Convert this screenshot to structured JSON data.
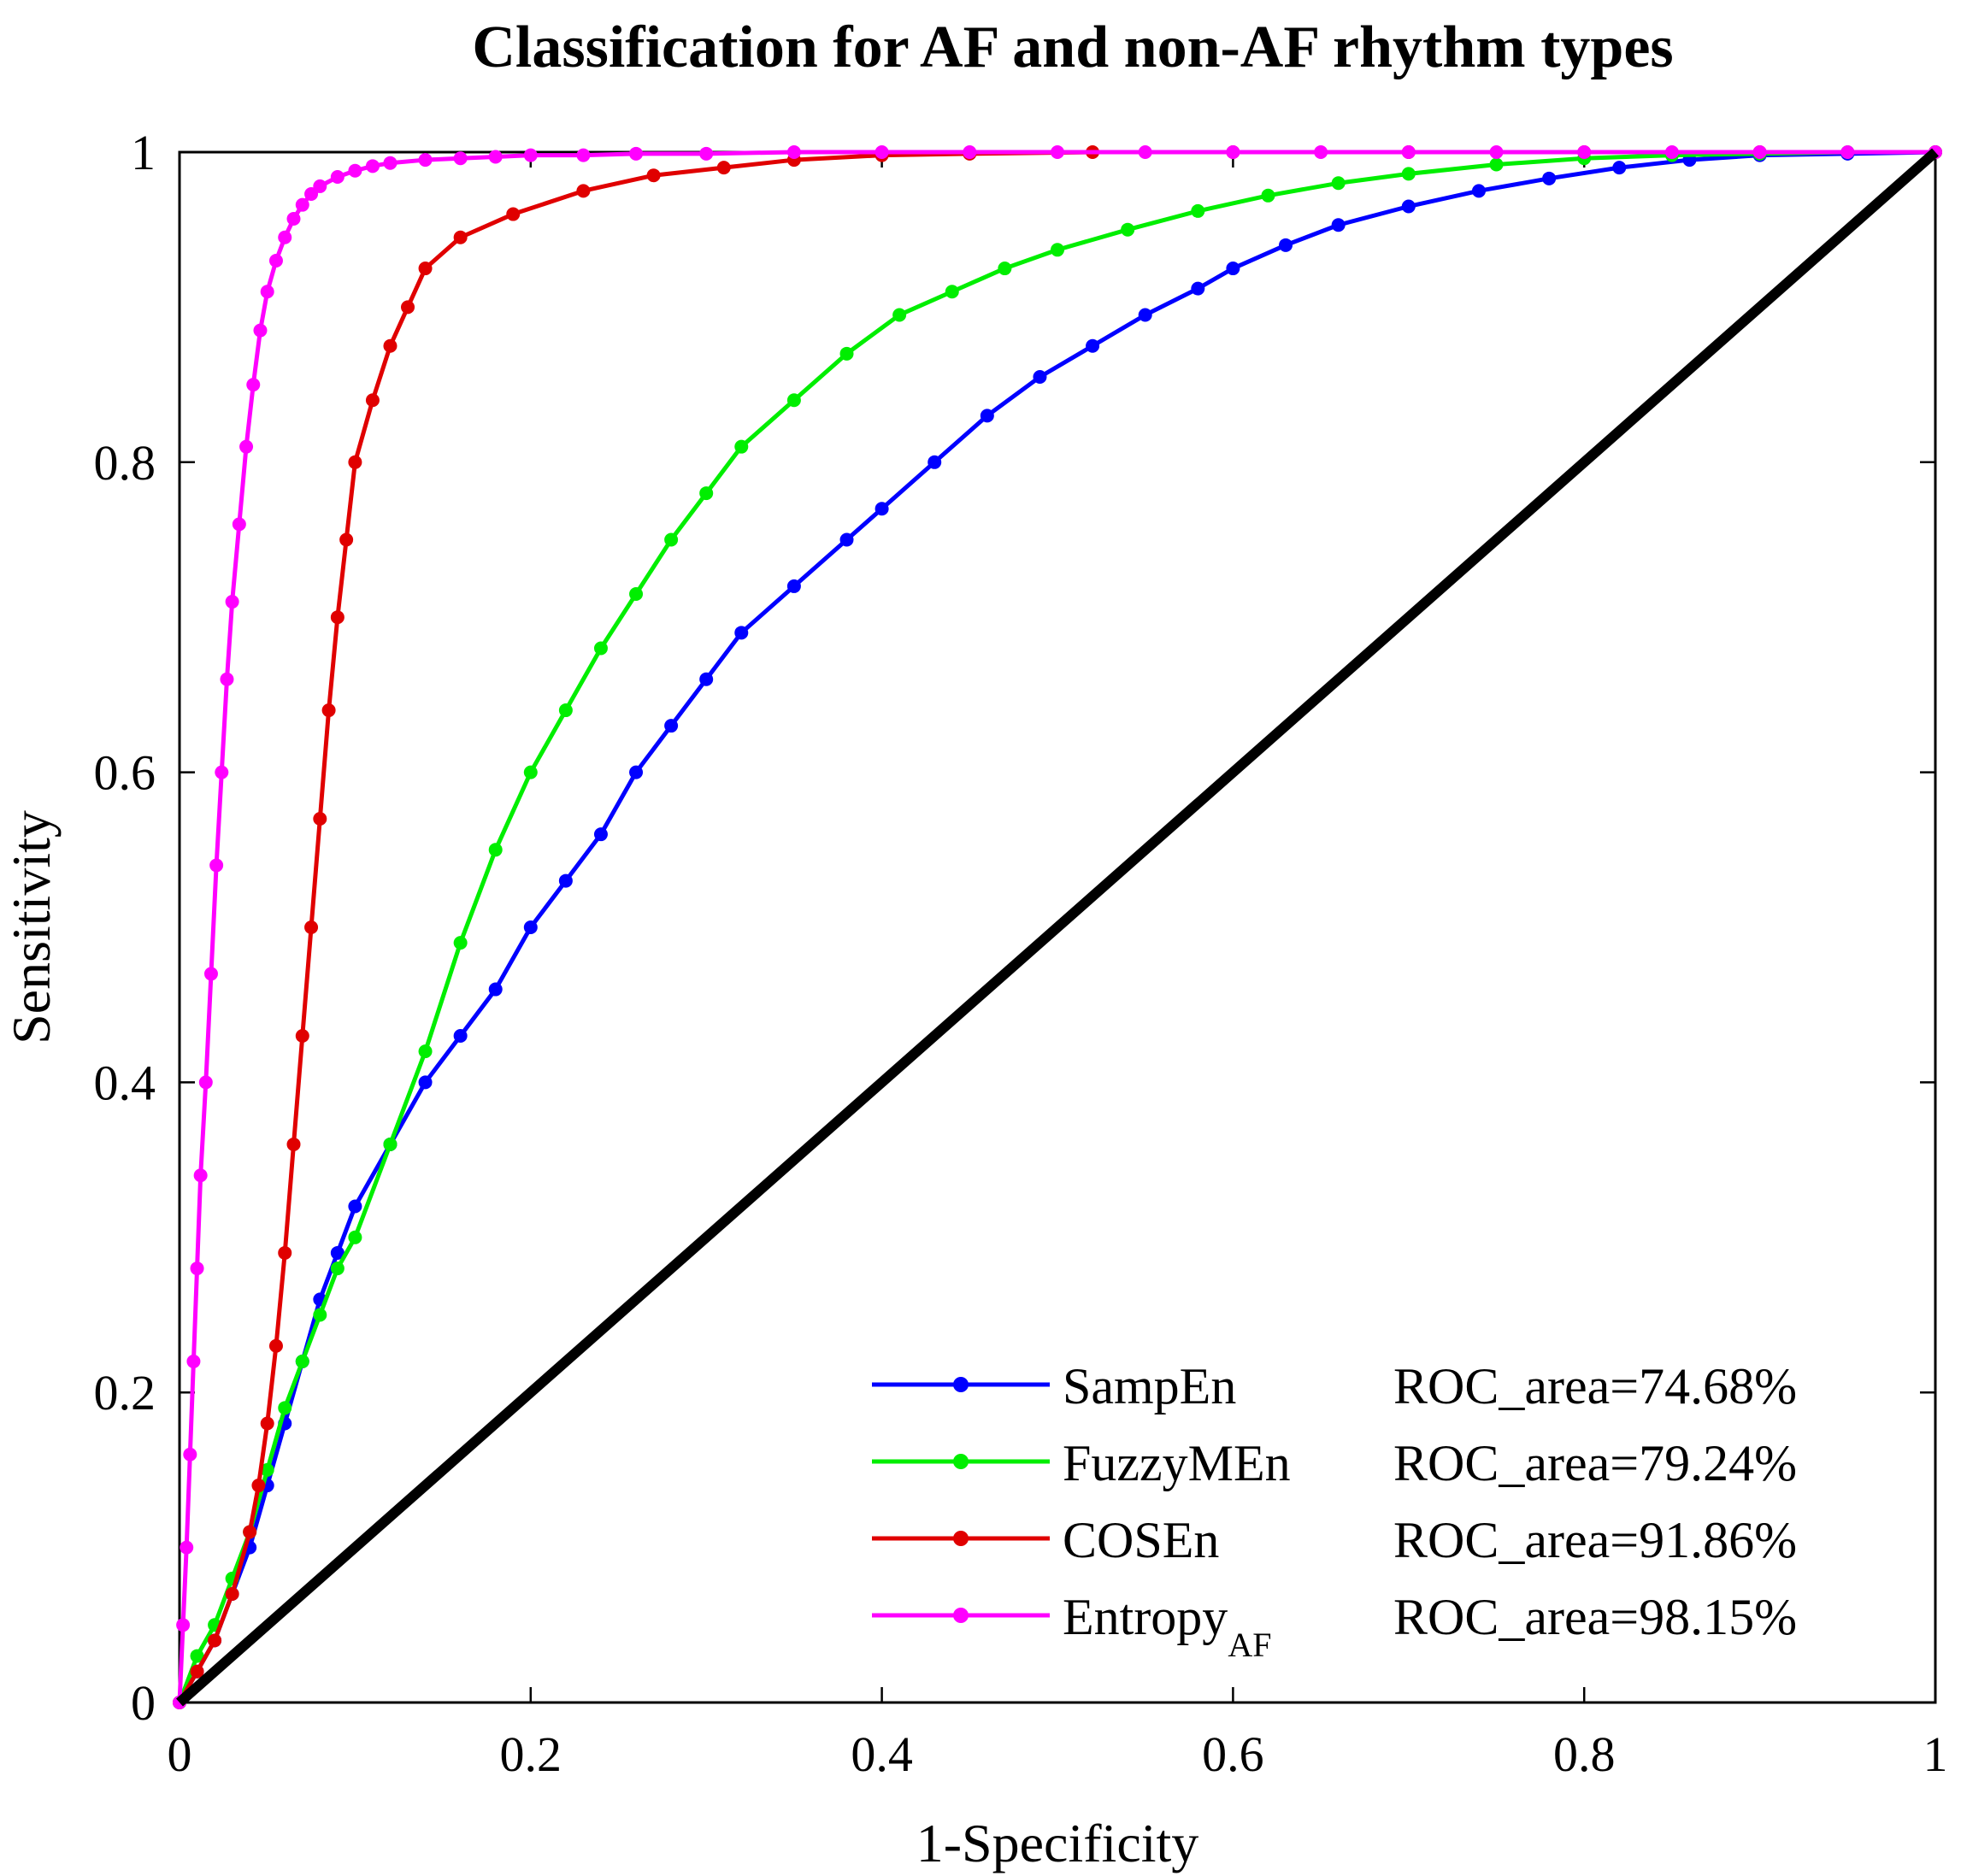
{
  "chart_data": {
    "type": "line",
    "title": "Classification for AF and non-AF rhythm types",
    "xlabel": "1-Specificity",
    "ylabel": "Sensitivity",
    "xlim": [
      0,
      1
    ],
    "ylim": [
      0,
      1
    ],
    "xticks": [
      "0",
      "0.2",
      "0.4",
      "0.6",
      "0.8",
      "1"
    ],
    "yticks": [
      "0",
      "0.2",
      "0.4",
      "0.6",
      "0.8",
      "1"
    ],
    "grid": false,
    "legend_position": "bottom-right",
    "series": [
      {
        "name": "SampEn",
        "name_sub": "",
        "annotation": "ROC_area=74.68%",
        "color": "#0000ff",
        "x": [
          0,
          0.01,
          0.02,
          0.03,
          0.04,
          0.05,
          0.06,
          0.07,
          0.08,
          0.09,
          0.1,
          0.12,
          0.14,
          0.16,
          0.18,
          0.2,
          0.22,
          0.24,
          0.26,
          0.28,
          0.3,
          0.32,
          0.35,
          0.38,
          0.4,
          0.43,
          0.46,
          0.49,
          0.52,
          0.55,
          0.58,
          0.6,
          0.63,
          0.66,
          0.7,
          0.74,
          0.78,
          0.82,
          0.86,
          0.9,
          0.95,
          1
        ],
        "y": [
          0,
          0.02,
          0.04,
          0.07,
          0.1,
          0.14,
          0.18,
          0.22,
          0.26,
          0.29,
          0.32,
          0.36,
          0.4,
          0.43,
          0.46,
          0.5,
          0.53,
          0.56,
          0.6,
          0.63,
          0.66,
          0.69,
          0.72,
          0.75,
          0.77,
          0.8,
          0.83,
          0.855,
          0.875,
          0.895,
          0.912,
          0.925,
          0.94,
          0.953,
          0.965,
          0.975,
          0.983,
          0.99,
          0.995,
          0.998,
          0.999,
          1
        ]
      },
      {
        "name": "FuzzyMEn",
        "name_sub": "",
        "annotation": "ROC_area=79.24%",
        "color": "#00ee00",
        "x": [
          0,
          0.01,
          0.02,
          0.03,
          0.04,
          0.05,
          0.06,
          0.07,
          0.08,
          0.09,
          0.1,
          0.12,
          0.14,
          0.16,
          0.18,
          0.2,
          0.22,
          0.24,
          0.26,
          0.28,
          0.3,
          0.32,
          0.35,
          0.38,
          0.41,
          0.44,
          0.47,
          0.5,
          0.54,
          0.58,
          0.62,
          0.66,
          0.7,
          0.75,
          0.8,
          0.85,
          0.9,
          0.95,
          1
        ],
        "y": [
          0,
          0.03,
          0.05,
          0.08,
          0.11,
          0.15,
          0.19,
          0.22,
          0.25,
          0.28,
          0.3,
          0.36,
          0.42,
          0.49,
          0.55,
          0.6,
          0.64,
          0.68,
          0.715,
          0.75,
          0.78,
          0.81,
          0.84,
          0.87,
          0.895,
          0.91,
          0.925,
          0.937,
          0.95,
          0.962,
          0.972,
          0.98,
          0.986,
          0.992,
          0.996,
          0.998,
          0.999,
          1,
          1
        ]
      },
      {
        "name": "COSEn",
        "name_sub": "",
        "annotation": "ROC_area=91.86%",
        "color": "#e00000",
        "x": [
          0,
          0.01,
          0.02,
          0.03,
          0.04,
          0.045,
          0.05,
          0.055,
          0.06,
          0.065,
          0.07,
          0.075,
          0.08,
          0.085,
          0.09,
          0.095,
          0.1,
          0.11,
          0.12,
          0.13,
          0.14,
          0.16,
          0.19,
          0.23,
          0.27,
          0.31,
          0.35,
          0.4,
          0.45,
          0.52,
          0.6,
          0.7,
          0.8,
          0.9,
          1
        ],
        "y": [
          0,
          0.02,
          0.04,
          0.07,
          0.11,
          0.14,
          0.18,
          0.23,
          0.29,
          0.36,
          0.43,
          0.5,
          0.57,
          0.64,
          0.7,
          0.75,
          0.8,
          0.84,
          0.875,
          0.9,
          0.925,
          0.945,
          0.96,
          0.975,
          0.985,
          0.99,
          0.995,
          0.998,
          0.999,
          1,
          1,
          1,
          1,
          1,
          1
        ]
      },
      {
        "name": "Entropy",
        "name_sub": "AF",
        "annotation": "ROC_area=98.15%",
        "color": "#ff00ff",
        "x": [
          0,
          0.002,
          0.004,
          0.006,
          0.008,
          0.01,
          0.012,
          0.015,
          0.018,
          0.021,
          0.024,
          0.027,
          0.03,
          0.034,
          0.038,
          0.042,
          0.046,
          0.05,
          0.055,
          0.06,
          0.065,
          0.07,
          0.075,
          0.08,
          0.09,
          0.1,
          0.11,
          0.12,
          0.14,
          0.16,
          0.18,
          0.2,
          0.23,
          0.26,
          0.3,
          0.35,
          0.4,
          0.45,
          0.5,
          0.55,
          0.6,
          0.65,
          0.7,
          0.75,
          0.8,
          0.85,
          0.9,
          0.95,
          1
        ],
        "y": [
          0,
          0.05,
          0.1,
          0.16,
          0.22,
          0.28,
          0.34,
          0.4,
          0.47,
          0.54,
          0.6,
          0.66,
          0.71,
          0.76,
          0.81,
          0.85,
          0.885,
          0.91,
          0.93,
          0.945,
          0.957,
          0.966,
          0.973,
          0.978,
          0.984,
          0.988,
          0.991,
          0.993,
          0.995,
          0.996,
          0.997,
          0.998,
          0.998,
          0.999,
          0.999,
          1,
          1,
          1,
          1,
          1,
          1,
          1,
          1,
          1,
          1,
          1,
          1,
          1,
          1
        ]
      },
      {
        "name": "",
        "name_sub": "",
        "annotation": "",
        "color": "#000000",
        "x": [
          0,
          1
        ],
        "y": [
          0,
          1
        ]
      }
    ]
  }
}
